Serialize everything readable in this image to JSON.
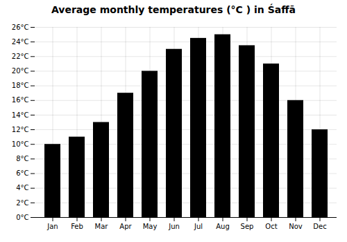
{
  "chart_data": {
    "type": "bar",
    "title": "Average monthly temperatures (°C ) in Śaffā",
    "categories": [
      "Jan",
      "Feb",
      "Mar",
      "Apr",
      "May",
      "Jun",
      "Jul",
      "Aug",
      "Sep",
      "Oct",
      "Nov",
      "Dec"
    ],
    "values": [
      10.0,
      11.0,
      13.0,
      17.0,
      20.0,
      23.0,
      24.5,
      25.0,
      23.5,
      21.0,
      16.0,
      12.0
    ],
    "ylim": [
      0,
      26
    ],
    "yticks": [
      {
        "value": 0,
        "label": "0°C"
      },
      {
        "value": 2,
        "label": "2°C"
      },
      {
        "value": 4,
        "label": "4°C"
      },
      {
        "value": 6,
        "label": "6°C"
      },
      {
        "value": 8,
        "label": "8°C"
      },
      {
        "value": 10,
        "label": "10°C"
      },
      {
        "value": 12,
        "label": "12°C"
      },
      {
        "value": 14,
        "label": "14°C"
      },
      {
        "value": 16,
        "label": "16°C"
      },
      {
        "value": 18,
        "label": "18°C"
      },
      {
        "value": 20,
        "label": "20°C"
      },
      {
        "value": 22,
        "label": "22°C"
      },
      {
        "value": 24,
        "label": "24°C"
      },
      {
        "value": 26,
        "label": "26°C"
      }
    ],
    "grid": true
  }
}
